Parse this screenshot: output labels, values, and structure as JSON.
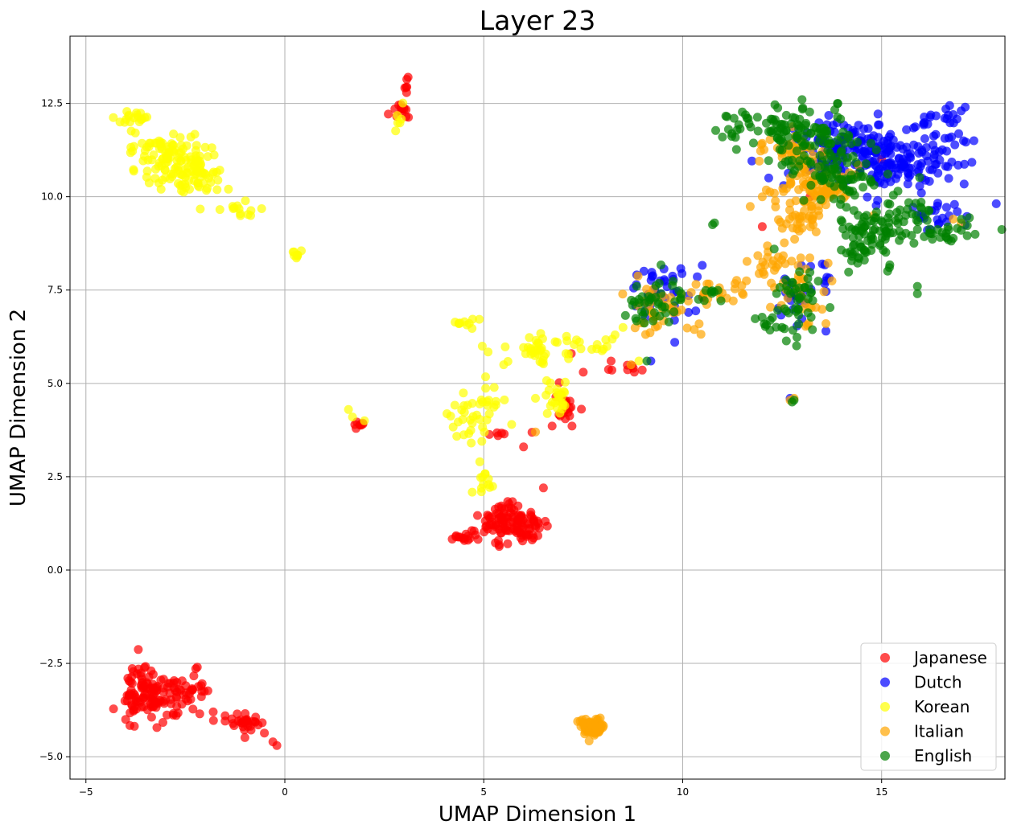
{
  "chart_data": {
    "type": "scatter",
    "title": "Layer 23",
    "xlabel": "UMAP Dimension 1",
    "ylabel": "UMAP Dimension 2",
    "xlim": [
      -5.4,
      18.1
    ],
    "ylim": [
      -5.6,
      14.3
    ],
    "xticks": [
      -5,
      0,
      5,
      10,
      15
    ],
    "yticks": [
      -5.0,
      -2.5,
      0.0,
      2.5,
      5.0,
      7.5,
      10.0,
      12.5
    ],
    "xtick_labels": [
      "−5",
      "0",
      "5",
      "10",
      "15"
    ],
    "ytick_labels": [
      "−5.0",
      "−2.5",
      "0.0",
      "2.5",
      "5.0",
      "7.5",
      "10.0",
      "12.5"
    ],
    "grid": true,
    "legend_position": "bottom-right",
    "series": [
      {
        "name": "Japanese",
        "color": "#ff0000",
        "clusters": [
          {
            "cx": -3.5,
            "cy": -3.3,
            "sx": 0.35,
            "sy": 0.35,
            "n": 110
          },
          {
            "cx": -2.4,
            "cy": -3.3,
            "sx": 0.25,
            "sy": 0.3,
            "n": 35
          },
          {
            "cx": -1.0,
            "cy": -4.1,
            "sx": 0.3,
            "sy": 0.12,
            "n": 30
          },
          {
            "cx": 5.6,
            "cy": 1.3,
            "sx": 0.4,
            "sy": 0.25,
            "n": 90
          },
          {
            "cx": 6.1,
            "cy": 1.0,
            "sx": 0.2,
            "sy": 0.2,
            "n": 25
          },
          {
            "cx": 4.6,
            "cy": 0.9,
            "sx": 0.25,
            "sy": 0.08,
            "n": 15
          },
          {
            "cx": 2.9,
            "cy": 12.3,
            "sx": 0.12,
            "sy": 0.12,
            "n": 14
          },
          {
            "cx": 3.05,
            "cy": 13.1,
            "sx": 0.03,
            "sy": 0.2,
            "n": 6
          },
          {
            "cx": 1.9,
            "cy": 3.9,
            "sx": 0.1,
            "sy": 0.04,
            "n": 8
          },
          {
            "cx": 7.1,
            "cy": 4.4,
            "sx": 0.15,
            "sy": 0.25,
            "n": 20
          },
          {
            "cx": 8.6,
            "cy": 5.4,
            "sx": 0.3,
            "sy": 0.1,
            "n": 8
          },
          {
            "cx": 5.2,
            "cy": 3.65,
            "sx": 0.25,
            "sy": 0.05,
            "n": 6
          }
        ],
        "points": [
          [
            -4.0,
            -4.0
          ],
          [
            -0.2,
            -4.7
          ],
          [
            -0.3,
            -4.6
          ],
          [
            -1.5,
            -3.9
          ],
          [
            -1.8,
            -3.8
          ],
          [
            -2.2,
            -2.6
          ],
          [
            6.0,
            3.3
          ],
          [
            6.5,
            2.2
          ],
          [
            7.2,
            5.8
          ],
          [
            7.5,
            5.3
          ],
          [
            8.2,
            5.6
          ],
          [
            10.5,
            7.3
          ],
          [
            12.0,
            9.2
          ],
          [
            15.0,
            11.0
          ],
          [
            13.2,
            10.0
          ]
        ]
      },
      {
        "name": "Dutch",
        "color": "#0000ff",
        "clusters": [
          {
            "cx": 15.2,
            "cy": 11.0,
            "sx": 0.9,
            "sy": 0.45,
            "n": 180
          },
          {
            "cx": 14.0,
            "cy": 11.5,
            "sx": 0.7,
            "sy": 0.3,
            "n": 70
          },
          {
            "cx": 16.6,
            "cy": 12.0,
            "sx": 0.4,
            "sy": 0.2,
            "n": 18
          },
          {
            "cx": 16.3,
            "cy": 9.5,
            "sx": 0.45,
            "sy": 0.25,
            "n": 22
          },
          {
            "cx": 9.5,
            "cy": 7.5,
            "sx": 0.4,
            "sy": 0.35,
            "n": 40
          },
          {
            "cx": 12.8,
            "cy": 7.2,
            "sx": 0.3,
            "sy": 0.4,
            "n": 20
          },
          {
            "cx": 13.5,
            "cy": 7.8,
            "sx": 0.2,
            "sy": 0.2,
            "n": 8
          }
        ],
        "points": [
          [
            17.1,
            12.4
          ],
          [
            17.0,
            12.3
          ],
          [
            16.8,
            12.2
          ],
          [
            9.8,
            6.1
          ],
          [
            9.2,
            5.6
          ],
          [
            12.7,
            4.6
          ],
          [
            16.0,
            10.1
          ],
          [
            16.9,
            9.6
          ],
          [
            13.6,
            6.4
          ]
        ]
      },
      {
        "name": "Korean",
        "color": "#ffff00",
        "clusters": [
          {
            "cx": -2.9,
            "cy": 11.0,
            "sx": 0.45,
            "sy": 0.4,
            "n": 110
          },
          {
            "cx": -2.2,
            "cy": 10.5,
            "sx": 0.3,
            "sy": 0.25,
            "n": 40
          },
          {
            "cx": -3.8,
            "cy": 12.1,
            "sx": 0.25,
            "sy": 0.15,
            "n": 20
          },
          {
            "cx": -1.1,
            "cy": 9.7,
            "sx": 0.25,
            "sy": 0.15,
            "n": 14
          },
          {
            "cx": 0.3,
            "cy": 8.5,
            "sx": 0.1,
            "sy": 0.06,
            "n": 8
          },
          {
            "cx": 4.9,
            "cy": 4.3,
            "sx": 0.35,
            "sy": 0.35,
            "n": 40
          },
          {
            "cx": 6.3,
            "cy": 5.9,
            "sx": 0.5,
            "sy": 0.2,
            "n": 40
          },
          {
            "cx": 6.9,
            "cy": 4.6,
            "sx": 0.15,
            "sy": 0.3,
            "n": 25
          },
          {
            "cx": 4.6,
            "cy": 6.6,
            "sx": 0.15,
            "sy": 0.06,
            "n": 10
          },
          {
            "cx": 5.0,
            "cy": 2.3,
            "sx": 0.12,
            "sy": 0.15,
            "n": 12
          },
          {
            "cx": 2.9,
            "cy": 12.0,
            "sx": 0.05,
            "sy": 0.15,
            "n": 6
          },
          {
            "cx": 7.8,
            "cy": 6.0,
            "sx": 0.3,
            "sy": 0.15,
            "n": 10
          }
        ],
        "points": [
          [
            1.6,
            4.3
          ],
          [
            1.7,
            4.1
          ],
          [
            2.0,
            4.0
          ],
          [
            8.3,
            6.3
          ],
          [
            8.5,
            6.5
          ],
          [
            8.9,
            5.6
          ],
          [
            5.7,
            3.9
          ],
          [
            6.3,
            4.6
          ],
          [
            5.5,
            5.5
          ],
          [
            4.9,
            2.9
          ]
        ]
      },
      {
        "name": "Italian",
        "color": "#ffa500",
        "clusters": [
          {
            "cx": 7.7,
            "cy": -4.2,
            "sx": 0.15,
            "sy": 0.12,
            "n": 70
          },
          {
            "cx": 13.2,
            "cy": 10.2,
            "sx": 0.5,
            "sy": 0.4,
            "n": 100
          },
          {
            "cx": 12.7,
            "cy": 11.3,
            "sx": 0.35,
            "sy": 0.25,
            "n": 30
          },
          {
            "cx": 12.4,
            "cy": 8.2,
            "sx": 0.4,
            "sy": 0.3,
            "n": 35
          },
          {
            "cx": 13.0,
            "cy": 9.3,
            "sx": 0.35,
            "sy": 0.2,
            "n": 25
          },
          {
            "cx": 9.5,
            "cy": 7.0,
            "sx": 0.5,
            "sy": 0.35,
            "n": 40
          },
          {
            "cx": 10.8,
            "cy": 7.4,
            "sx": 0.5,
            "sy": 0.15,
            "n": 20
          },
          {
            "cx": 13.0,
            "cy": 7.2,
            "sx": 0.3,
            "sy": 0.4,
            "n": 20
          }
        ],
        "points": [
          [
            12.8,
            4.6
          ],
          [
            12.7,
            4.55
          ],
          [
            6.3,
            3.7
          ],
          [
            17.0,
            9.3
          ],
          [
            14.8,
            9.5
          ],
          [
            16.8,
            9.4
          ],
          [
            8.7,
            5.5
          ],
          [
            13.6,
            6.6
          ],
          [
            12.0,
            10.0
          ]
        ]
      },
      {
        "name": "English",
        "color": "#008000",
        "clusters": [
          {
            "cx": 13.3,
            "cy": 11.5,
            "sx": 0.6,
            "sy": 0.35,
            "n": 90
          },
          {
            "cx": 14.7,
            "cy": 9.0,
            "sx": 0.45,
            "sy": 0.55,
            "n": 80
          },
          {
            "cx": 13.9,
            "cy": 10.5,
            "sx": 0.5,
            "sy": 0.4,
            "n": 60
          },
          {
            "cx": 12.5,
            "cy": 11.9,
            "sx": 0.5,
            "sy": 0.15,
            "n": 30
          },
          {
            "cx": 12.9,
            "cy": 7.2,
            "sx": 0.35,
            "sy": 0.45,
            "n": 45
          },
          {
            "cx": 9.3,
            "cy": 7.2,
            "sx": 0.35,
            "sy": 0.4,
            "n": 40
          },
          {
            "cx": 16.3,
            "cy": 9.0,
            "sx": 0.45,
            "sy": 0.15,
            "n": 30
          },
          {
            "cx": 15.6,
            "cy": 9.5,
            "sx": 0.35,
            "sy": 0.35,
            "n": 30
          },
          {
            "cx": 11.3,
            "cy": 11.7,
            "sx": 0.3,
            "sy": 0.25,
            "n": 15
          },
          {
            "cx": 10.6,
            "cy": 7.3,
            "sx": 0.3,
            "sy": 0.15,
            "n": 10
          },
          {
            "cx": 12.2,
            "cy": 6.6,
            "sx": 0.15,
            "sy": 0.15,
            "n": 10
          }
        ],
        "points": [
          [
            12.8,
            4.55
          ],
          [
            12.75,
            4.5
          ],
          [
            10.8,
            9.3
          ],
          [
            10.75,
            9.25
          ],
          [
            15.9,
            7.4
          ],
          [
            15.9,
            7.6
          ],
          [
            9.1,
            5.6
          ],
          [
            13.9,
            12.5
          ],
          [
            13.0,
            12.6
          ],
          [
            17.0,
            9.1
          ],
          [
            16.9,
            9.15
          ],
          [
            11.0,
            11.6
          ],
          [
            12.3,
            8.6
          ]
        ]
      }
    ]
  }
}
